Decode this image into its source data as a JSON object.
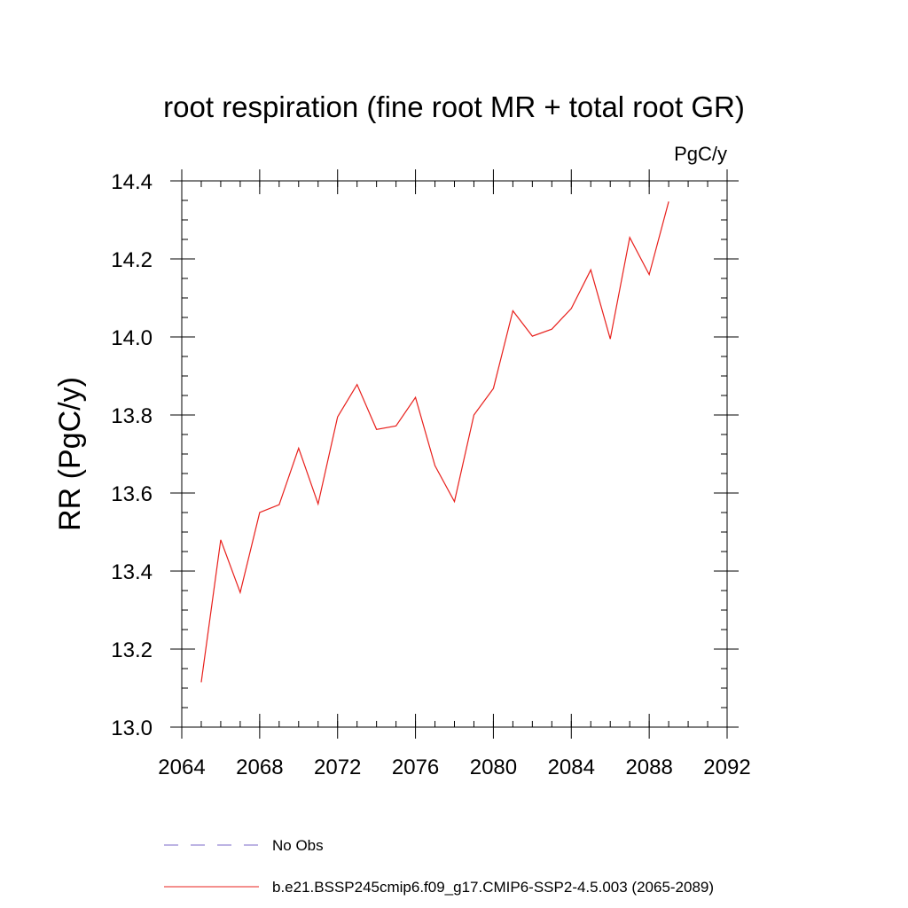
{
  "chart_data": {
    "type": "line",
    "title": "root respiration (fine root MR + total root GR)",
    "units": "PgC/y",
    "xlabel": "",
    "ylabel": "RR  (PgC/y)",
    "xlim": [
      2064,
      2092
    ],
    "ylim": [
      13.0,
      14.4
    ],
    "x_ticks": [
      "2064",
      "2068",
      "2072",
      "2076",
      "2080",
      "2084",
      "2088",
      "2092"
    ],
    "y_ticks": [
      "13.0",
      "13.2",
      "13.4",
      "13.6",
      "13.8",
      "14.0",
      "14.2",
      "14.4"
    ],
    "x_minor_step": 1,
    "y_minor_step": 0.05,
    "grid": false,
    "legend_position": "bottom",
    "series": [
      {
        "name": "No Obs",
        "color": "#7b68c8",
        "style": "dashed",
        "x": [],
        "y": []
      },
      {
        "name": "b.e21.BSSP245cmip6.f09_g17.CMIP6-SSP2-4.5.003 (2065-2089)",
        "color": "#e8201c",
        "style": "solid",
        "x": [
          2065,
          2066,
          2067,
          2068,
          2069,
          2070,
          2071,
          2072,
          2073,
          2074,
          2075,
          2076,
          2077,
          2078,
          2079,
          2080,
          2081,
          2082,
          2083,
          2084,
          2085,
          2086,
          2087,
          2088,
          2089
        ],
        "y": [
          13.115,
          13.48,
          13.345,
          13.55,
          13.57,
          13.715,
          13.572,
          13.795,
          13.878,
          13.763,
          13.772,
          13.845,
          13.67,
          13.578,
          13.8,
          13.868,
          14.067,
          14.002,
          14.02,
          14.073,
          14.172,
          13.995,
          14.255,
          14.16,
          14.347
        ]
      }
    ]
  }
}
